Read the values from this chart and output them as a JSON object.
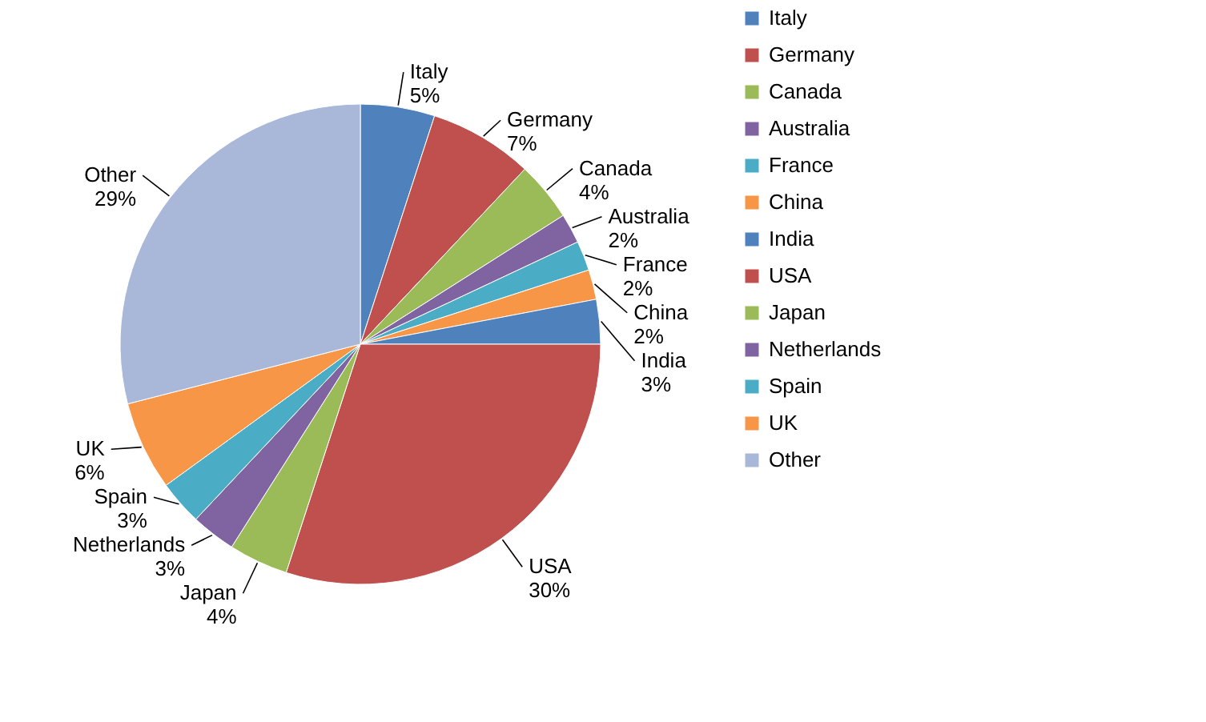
{
  "chart_data": {
    "type": "pie",
    "categories": [
      "Italy",
      "Germany",
      "Canada",
      "Australia",
      "France",
      "China",
      "India",
      "USA",
      "Japan",
      "Netherlands",
      "Spain",
      "UK",
      "Other"
    ],
    "values": [
      5,
      7,
      4,
      2,
      2,
      2,
      3,
      30,
      4,
      3,
      3,
      6,
      29
    ],
    "value_labels": [
      "5%",
      "7%",
      "4%",
      "2%",
      "2%",
      "2%",
      "3%",
      "30%",
      "4%",
      "3%",
      "3%",
      "6%",
      "29%"
    ],
    "colors": [
      "#4f81bd",
      "#c0504d",
      "#9bbb59",
      "#8064a2",
      "#4bacc6",
      "#f79646",
      "#4f81bd",
      "#c0504d",
      "#9bbb59",
      "#8064a2",
      "#4bacc6",
      "#f79646",
      "#a9b8d9"
    ],
    "legend": "right"
  }
}
